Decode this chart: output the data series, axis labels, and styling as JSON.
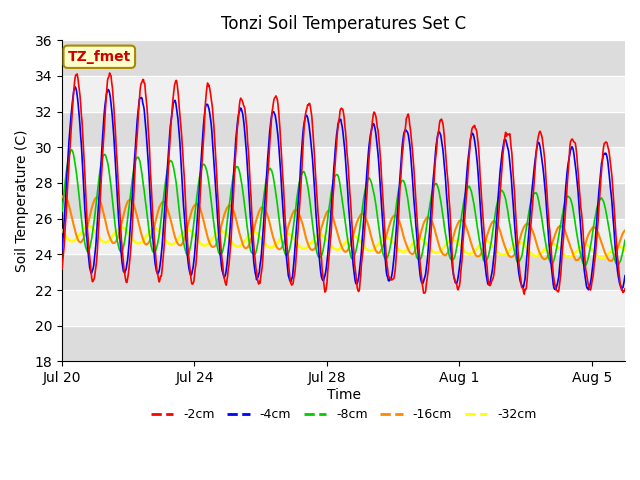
{
  "title": "Tonzi Soil Temperatures Set C",
  "xlabel": "Time",
  "ylabel": "Soil Temperature (C)",
  "ylim": [
    18,
    36
  ],
  "yticks": [
    18,
    20,
    22,
    24,
    26,
    28,
    30,
    32,
    34,
    36
  ],
  "xlim_start": 0,
  "xlim_end": 17.0,
  "xtick_positions": [
    0,
    4,
    8,
    12,
    16
  ],
  "xtick_labels": [
    "Jul 20",
    "Jul 24",
    "Jul 28",
    "Aug 1",
    "Aug 5"
  ],
  "series": {
    "-2cm": {
      "color": "#ff0000",
      "lw": 1.2
    },
    "-4cm": {
      "color": "#0000ff",
      "lw": 1.2
    },
    "-8cm": {
      "color": "#00cc00",
      "lw": 1.2
    },
    "-16cm": {
      "color": "#ff8800",
      "lw": 1.5
    },
    "-32cm": {
      "color": "#ffff00",
      "lw": 1.8
    }
  },
  "annotation_text": "TZ_fmet",
  "annotation_color": "#cc0000",
  "annotation_bg": "#ffffcc",
  "band_colors": [
    "#dcdcdc",
    "#f0f0f0"
  ],
  "grid_color": "#ffffff"
}
